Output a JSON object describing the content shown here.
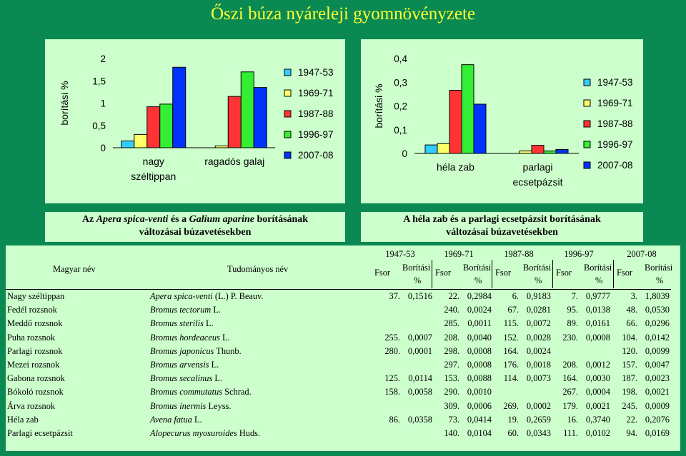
{
  "title": "Őszi búza nyáreleji gyomnövényzete",
  "legend_labels": [
    "1947-53",
    "1969-71",
    "1987-88",
    "1996-97",
    "2007-08"
  ],
  "colors": [
    "#33ccff",
    "#ffff66",
    "#ff3333",
    "#33ee33",
    "#0033ff"
  ],
  "chart_data": [
    {
      "type": "bar",
      "ylabel": "borítási %",
      "ylim": [
        0,
        2
      ],
      "yticks": [
        "0",
        "0,5",
        "1",
        "1,5",
        "2"
      ],
      "categories": [
        "nagy széltippan",
        "ragadós galaj"
      ],
      "category_lines": [
        [
          "nagy",
          "széltippan"
        ],
        [
          "ragadós galaj"
        ]
      ],
      "series": [
        {
          "name": "1947-53",
          "values": [
            0.1516,
            0
          ]
        },
        {
          "name": "1969-71",
          "values": [
            0.2984,
            0.04
          ]
        },
        {
          "name": "1987-88",
          "values": [
            0.9183,
            1.15
          ]
        },
        {
          "name": "1996-97",
          "values": [
            0.9777,
            1.7
          ]
        },
        {
          "name": "2007-08",
          "values": [
            1.8039,
            1.35
          ]
        }
      ],
      "legend": "right"
    },
    {
      "type": "bar",
      "ylabel": "borítási %",
      "ylim": [
        0,
        0.4
      ],
      "yticks": [
        "0",
        "0,1",
        "0,2",
        "0,3",
        "0,4"
      ],
      "categories": [
        "héla zab",
        "parlagi ecsetpázsit"
      ],
      "category_lines": [
        [
          "héla zab"
        ],
        [
          "parlagi",
          "ecsetpázsit"
        ]
      ],
      "series": [
        {
          "name": "1947-53",
          "values": [
            0.0358,
            0
          ]
        },
        {
          "name": "1969-71",
          "values": [
            0.0414,
            0.0104
          ]
        },
        {
          "name": "1987-88",
          "values": [
            0.2659,
            0.0343
          ]
        },
        {
          "name": "1996-97",
          "values": [
            0.374,
            0.0102
          ]
        },
        {
          "name": "2007-08",
          "values": [
            0.2076,
            0.0169
          ]
        }
      ],
      "legend": "right"
    }
  ],
  "caption1": {
    "line1": [
      {
        "text": "Az ",
        "i": false
      },
      {
        "text": "Apera spica-venti",
        "i": true
      },
      {
        "text": " és a ",
        "i": false
      },
      {
        "text": "Galium aparine",
        "i": true
      },
      {
        "text": " borításának",
        "i": false
      }
    ],
    "line2": "változásai búzavetésekben"
  },
  "caption2": {
    "line1": "A héla zab és a parlagi ecsetpázsit borításának",
    "line2": "változásai búzavetésekben"
  },
  "table": {
    "col_magyar": "Magyar név",
    "col_tudomanyos": "Tudományos név",
    "years": [
      "1947-53",
      "1969-71",
      "1987-88",
      "1996-97",
      "2007-08"
    ],
    "fsor": "Fsor",
    "boritasi": "Borítási",
    "percent": "%",
    "rows": [
      {
        "magyar": "Nagy széltippan",
        "sci": "Apera spica-venti",
        "auth": " (L.) P. Beauv.",
        "vals": [
          "37.",
          "0,1516",
          "22.",
          "0,2984",
          "6.",
          "0,9183",
          "7.",
          "0,9777",
          "3.",
          "1,8039"
        ]
      },
      {
        "magyar": "Fedél rozsnok",
        "sci": "Bromus tectorum",
        "auth": " L.",
        "vals": [
          "",
          "",
          "240.",
          "0,0024",
          "67.",
          "0,0281",
          "95.",
          "0,0138",
          "48.",
          "0,0530"
        ]
      },
      {
        "magyar": "Meddő rozsnok",
        "sci": "Bromus sterilis",
        "auth": " L.",
        "vals": [
          "",
          "",
          "285.",
          "0,0011",
          "115.",
          "0,0072",
          "89.",
          "0,0161",
          "66.",
          "0,0296"
        ]
      },
      {
        "magyar": "Puha rozsnok",
        "sci": "Bromus hordeaceus",
        "auth": " L.",
        "vals": [
          "255.",
          "0,0007",
          "208.",
          "0,0040",
          "152.",
          "0,0028",
          "230.",
          "0,0008",
          "104.",
          "0,0142"
        ]
      },
      {
        "magyar": "Parlagi rozsnok",
        "sci": "Bromus japonicus",
        "auth": " Thunb.",
        "vals": [
          "280.",
          "0,0001",
          "298.",
          "0,0008",
          "164.",
          "0,0024",
          "",
          "",
          "120.",
          "0,0099"
        ]
      },
      {
        "magyar": "Mezei rozsnok",
        "sci": "Bromus arvensis",
        "auth": " L.",
        "vals": [
          "",
          "",
          "297.",
          "0,0008",
          "176.",
          "0,0018",
          "208.",
          "0,0012",
          "157.",
          "0,0047"
        ]
      },
      {
        "magyar": "Gabona rozsnok",
        "sci": "Bromus secalinus",
        "auth": " L.",
        "vals": [
          "125.",
          "0,0114",
          "153.",
          "0,0088",
          "114.",
          "0,0073",
          "164.",
          "0,0030",
          "187.",
          "0,0023"
        ]
      },
      {
        "magyar": "Bókoló rozsnok",
        "sci": "Bromus commutatus",
        "auth": " Schrad.",
        "vals": [
          "158.",
          "0,0058",
          "290.",
          "0,0010",
          "",
          "",
          "267.",
          "0,0004",
          "198.",
          "0,0021"
        ]
      },
      {
        "magyar": "Árva rozsnok",
        "sci": "Bromus inermis",
        "auth": " Leyss.",
        "vals": [
          "",
          "",
          "309.",
          "0,0006",
          "269.",
          "0,0002",
          "179.",
          "0,0021",
          "245.",
          "0,0009"
        ]
      },
      {
        "magyar": "Héla zab",
        "sci": "Avena fatua",
        "auth": " L.",
        "vals": [
          "86.",
          "0,0358",
          "73.",
          "0,0414",
          "19.",
          "0,2659",
          "16.",
          "0,3740",
          "22.",
          "0,2076"
        ]
      },
      {
        "magyar": "Parlagi ecsetpázsit",
        "sci": "Alopecurus myosuroides",
        "auth": " Huds.",
        "vals": [
          "",
          "",
          "140.",
          "0,0104",
          "60.",
          "0,0343",
          "111.",
          "0,0102",
          "94.",
          "0,0169"
        ]
      }
    ]
  }
}
